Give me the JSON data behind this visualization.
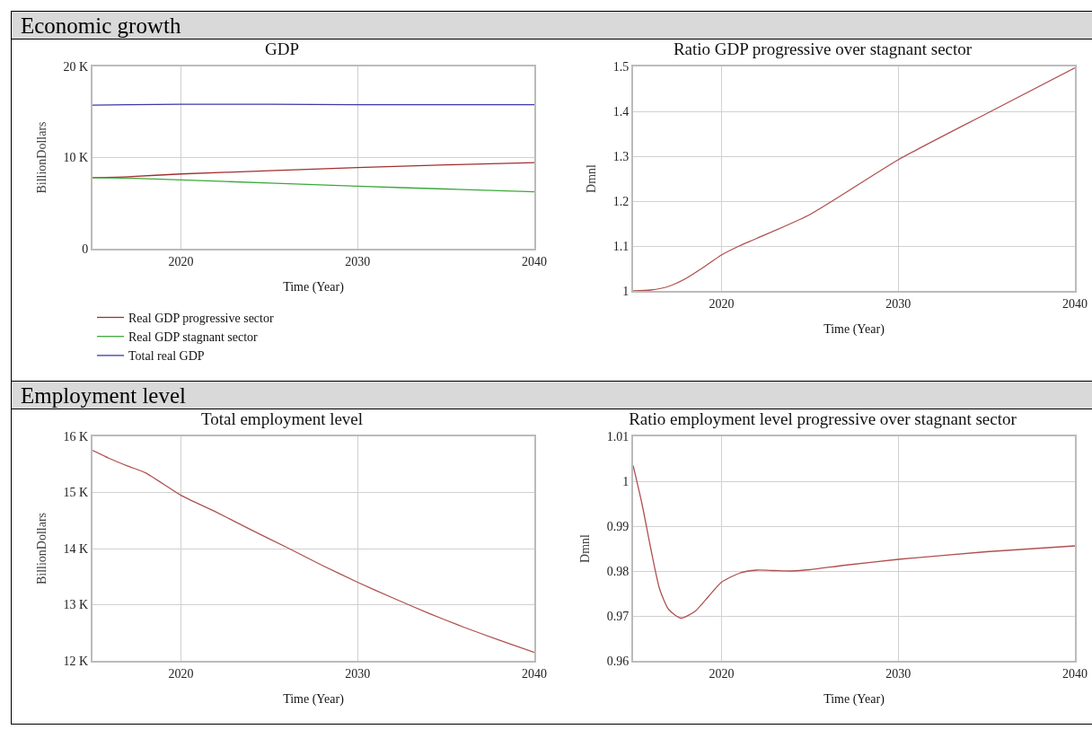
{
  "chart_data": [
    {
      "type": "other",
      "title": "Economic growth"
    },
    {
      "type": "line",
      "title": "GDP",
      "xlabel": "Time (Year)",
      "ylabel": "BillionDollars",
      "xlim": [
        2015,
        2040
      ],
      "xticks": [
        2020,
        2030,
        2040
      ],
      "ylim": [
        0,
        20000
      ],
      "yticks": [
        {
          "value": 0,
          "label": "0"
        },
        {
          "value": 10000,
          "label": "10 K"
        },
        {
          "value": 20000,
          "label": "20 K"
        }
      ],
      "grid": true,
      "legend": "bottom left",
      "x": [
        2015,
        2017,
        2020,
        2025,
        2030,
        2035,
        2040
      ],
      "series": [
        {
          "name": "Real GDP progressive sector",
          "color": "#a03030",
          "values": [
            7800,
            7900,
            8200,
            8550,
            8900,
            9200,
            9450
          ]
        },
        {
          "name": "Real GDP stagnant sector",
          "color": "#3aaa3a",
          "values": [
            7800,
            7750,
            7550,
            7200,
            6850,
            6550,
            6250
          ]
        },
        {
          "name": "Total real GDP",
          "color": "#3a3aa8",
          "values": [
            15750,
            15800,
            15850,
            15850,
            15800,
            15800,
            15800
          ]
        }
      ]
    },
    {
      "type": "line",
      "title": "Ratio GDP progressive over stagnant sector",
      "xlabel": "Time (Year)",
      "ylabel": "Dmnl",
      "xlim": [
        2015,
        2040
      ],
      "xticks": [
        2020,
        2030,
        2040
      ],
      "ylim": [
        1,
        1.5
      ],
      "yticks": [
        1,
        1.1,
        1.2,
        1.3,
        1.4,
        1.5
      ],
      "grid": true,
      "x": [
        2015,
        2016,
        2017,
        2018,
        2019,
        2020,
        2021,
        2022,
        2025,
        2030,
        2035,
        2040
      ],
      "series": [
        {
          "color": "#b05050",
          "values": [
            1.0,
            1.002,
            1.01,
            1.028,
            1.053,
            1.08,
            1.1,
            1.117,
            1.17,
            1.292,
            1.395,
            1.497
          ]
        }
      ]
    },
    {
      "type": "other",
      "title": "Employment level"
    },
    {
      "type": "line",
      "title": "Total employment level",
      "xlabel": "Time (Year)",
      "ylabel": "BillionDollars",
      "xlim": [
        2015,
        2040
      ],
      "xticks": [
        2020,
        2030,
        2040
      ],
      "ylim": [
        12000,
        16000
      ],
      "yticks": [
        {
          "value": 12000,
          "label": "12 K"
        },
        {
          "value": 13000,
          "label": "13 K"
        },
        {
          "value": 14000,
          "label": "14 K"
        },
        {
          "value": 15000,
          "label": "15 K"
        },
        {
          "value": 16000,
          "label": "16 K"
        }
      ],
      "grid": true,
      "x": [
        2015,
        2016,
        2017,
        2018,
        2020,
        2022,
        2024,
        2026,
        2028,
        2030,
        2032,
        2034,
        2036,
        2038,
        2040
      ],
      "series": [
        {
          "color": "#b05050",
          "values": [
            15750,
            15600,
            15470,
            15350,
            14950,
            14650,
            14330,
            14020,
            13700,
            13400,
            13120,
            12850,
            12600,
            12370,
            12150
          ]
        }
      ]
    },
    {
      "type": "line",
      "title": "Ratio employment level progressive over stagnant sector",
      "xlabel": "Time (Year)",
      "ylabel": "Dmnl",
      "xlim": [
        2015,
        2040
      ],
      "xticks": [
        2020,
        2030,
        2040
      ],
      "ylim": [
        0.96,
        1.01
      ],
      "yticks": [
        0.96,
        0.97,
        0.98,
        0.99,
        1,
        1.01
      ],
      "grid": true,
      "x": [
        2015,
        2015.5,
        2016,
        2016.5,
        2017,
        2017.7,
        2018.5,
        2019.3,
        2020,
        2021,
        2022,
        2023,
        2024,
        2025,
        2027,
        2030,
        2035,
        2040
      ],
      "series": [
        {
          "color": "#b05050",
          "values": [
            1.0035,
            0.995,
            0.985,
            0.976,
            0.9715,
            0.9695,
            0.971,
            0.9745,
            0.9775,
            0.9795,
            0.9802,
            0.9801,
            0.98,
            0.9803,
            0.9813,
            0.9826,
            0.9843,
            0.9856
          ]
        }
      ]
    }
  ]
}
